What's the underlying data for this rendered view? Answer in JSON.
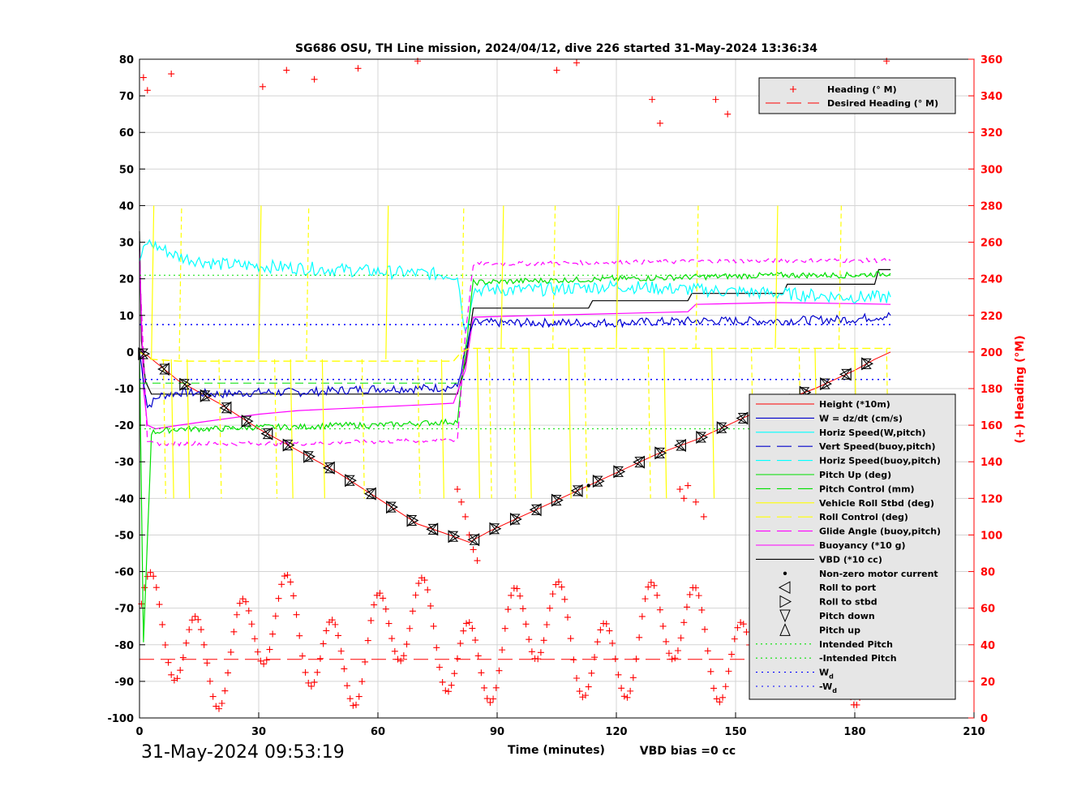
{
  "chart_data": {
    "type": "line",
    "title": "SG686 OSU, TH Line mission, 2024/04/12, dive 226 started 31-May-2024 13:36:34",
    "xlabel": "Time (minutes)",
    "ylabel": "",
    "y2label": "(+) Heading (°M)",
    "xlim": [
      0,
      210
    ],
    "ylim": [
      -100,
      80
    ],
    "y2lim": [
      0,
      360
    ],
    "x_ticks": [
      0,
      30,
      60,
      90,
      120,
      150,
      180,
      210
    ],
    "y_ticks": [
      -100,
      -90,
      -80,
      -70,
      -60,
      -50,
      -40,
      -30,
      -20,
      -10,
      0,
      10,
      20,
      30,
      40,
      50,
      60,
      70,
      80
    ],
    "y2_ticks": [
      0,
      20,
      40,
      60,
      80,
      100,
      120,
      140,
      160,
      180,
      200,
      220,
      240,
      260,
      280,
      300,
      320,
      340,
      360
    ],
    "grid": true,
    "timestamp": "31-May-2024 09:53:19",
    "vbd_bias": "VBD bias =0 cc",
    "legend_top": {
      "placement": "top-right",
      "entries": [
        "Heading (° M)",
        "Desired Heading (° M)"
      ]
    },
    "legend_main": {
      "placement": "right",
      "entries": [
        "Height (*10m)",
        "W = dz/dt (cm/s)",
        "Horiz Speed(W,pitch)",
        "Vert Speed(buoy,pitch)",
        "Horiz Speed(buoy,pitch)",
        "Pitch Up (deg)",
        "Pitch Control (mm)",
        "Vehicle Roll Stbd (deg)",
        "Roll Control (deg)",
        "Glide Angle (buoy,pitch)",
        "Buoyancy (*10 g)",
        "VBD (*10 cc)",
        "Non-zero motor current",
        "Roll to port",
        "Roll to stbd",
        "Pitch down",
        "Pitch up",
        "Intended Pitch",
        "-Intended Pitch",
        "W",
        "-W"
      ],
      "wd_subscript": "d"
    },
    "colors": {
      "height": "#ff0000",
      "w": "#0000cc",
      "horiz_w": "#00ffff",
      "vert_buoy": "#0000cc",
      "horiz_buoy": "#00ffff",
      "pitch": "#00e000",
      "pitch_ctrl": "#00e000",
      "roll": "#ffff00",
      "roll_ctrl": "#ffff00",
      "glide": "#ff00ff",
      "buoyancy": "#ff00ff",
      "vbd": "#000000",
      "heading": "#ff0000",
      "axis2": "#ff0000"
    },
    "series": [
      {
        "name": "Height (*10m)",
        "x": [
          0,
          2,
          10,
          20,
          30,
          40,
          50,
          60,
          70,
          78,
          83,
          88,
          100,
          110,
          120,
          130,
          140,
          150,
          160,
          170,
          180,
          185,
          189
        ],
        "y": [
          0,
          -1,
          -8,
          -14,
          -21,
          -27,
          -33,
          -40,
          -47,
          -50,
          -52,
          -49,
          -43,
          -38,
          -33,
          -28,
          -24,
          -19,
          -14,
          -10,
          -5,
          -2,
          0
        ]
      },
      {
        "name": "VBD (*10 cc)",
        "x": [
          0,
          0.5,
          1.5,
          3,
          80,
          82,
          84,
          113,
          114,
          138,
          139,
          162,
          163,
          185,
          186,
          189
        ],
        "y": [
          33,
          3,
          -8,
          -11.5,
          -11.5,
          -3,
          12,
          12,
          14,
          14,
          16,
          16,
          18.5,
          18.5,
          22.5,
          22.5
        ]
      },
      {
        "name": "Buoyancy (*10 g)",
        "x": [
          0,
          1,
          2,
          4,
          10,
          20,
          30,
          40,
          50,
          60,
          70,
          79,
          82,
          84,
          100,
          120,
          138,
          140,
          160,
          180,
          189
        ],
        "y": [
          28,
          -10,
          -20,
          -21,
          -20,
          -18.5,
          -17,
          -16,
          -15.5,
          -15,
          -14.5,
          -14,
          -5,
          9.5,
          10,
          10.5,
          11,
          13,
          13.5,
          13.2,
          13
        ]
      },
      {
        "name": "W = dz/dt (cm/s)",
        "x": [
          0,
          2,
          5,
          10,
          20,
          30,
          40,
          50,
          60,
          70,
          80,
          82,
          84,
          100,
          120,
          140,
          160,
          180,
          189
        ],
        "y": [
          0,
          -15,
          -12,
          -11,
          -11.5,
          -11,
          -11,
          -10.5,
          -10,
          -10,
          -9.5,
          0,
          8,
          8,
          8,
          8.5,
          8.5,
          9,
          10
        ]
      },
      {
        "name": "Horiz Speed(W,pitch)",
        "x": [
          0,
          2,
          10,
          20,
          30,
          40,
          50,
          60,
          70,
          80,
          82,
          84,
          100,
          120,
          140,
          160,
          180,
          189
        ],
        "y": [
          25,
          30,
          26,
          24,
          23.5,
          23,
          22.5,
          22,
          21.5,
          21,
          5,
          17,
          17,
          18,
          17,
          16,
          15,
          15
        ]
      },
      {
        "name": "Pitch Up (deg)",
        "x": [
          0,
          1,
          3,
          10,
          20,
          30,
          40,
          50,
          60,
          70,
          80,
          82,
          84,
          100,
          120,
          140,
          160,
          180,
          189
        ],
        "y": [
          0,
          -80,
          -22,
          -21,
          -21,
          -20.5,
          -20.5,
          -20,
          -20,
          -19.5,
          -19,
          0,
          19,
          19.5,
          20,
          20.5,
          21,
          21,
          21.5
        ]
      },
      {
        "name": "Glide Angle (buoy,pitch)",
        "x": [
          0,
          2,
          10,
          40,
          80,
          82,
          84,
          120,
          160,
          189
        ],
        "y": [
          25,
          -25,
          -25,
          -25,
          -24,
          5,
          24,
          24.5,
          25,
          25
        ]
      },
      {
        "name": "Roll Control (deg)",
        "x": [
          0,
          3,
          10,
          40,
          79,
          81,
          83,
          100,
          140,
          189
        ],
        "y": [
          0,
          -2,
          -2.5,
          -2.5,
          -2.5,
          0,
          1,
          1,
          1,
          1
        ]
      },
      {
        "name": "Intended Pitch",
        "x": [
          0,
          189
        ],
        "y": [
          21,
          21
        ]
      },
      {
        "name": "-Intended Pitch",
        "x": [
          0,
          189
        ],
        "y": [
          -21,
          -21
        ]
      },
      {
        "name": "W",
        "x": [
          0,
          189
        ],
        "y": [
          7.5,
          7.5
        ]
      },
      {
        "name": "-W",
        "x": [
          0,
          189
        ],
        "y": [
          -7.5,
          -7.5
        ]
      },
      {
        "name": "Pitch Control (mm)",
        "x": [
          0,
          80
        ],
        "y": [
          -8.5,
          -8.5
        ]
      },
      {
        "name": "Desired Heading (° M)",
        "x": [
          0,
          189
        ],
        "y2": [
          32,
          32
        ]
      }
    ]
  }
}
